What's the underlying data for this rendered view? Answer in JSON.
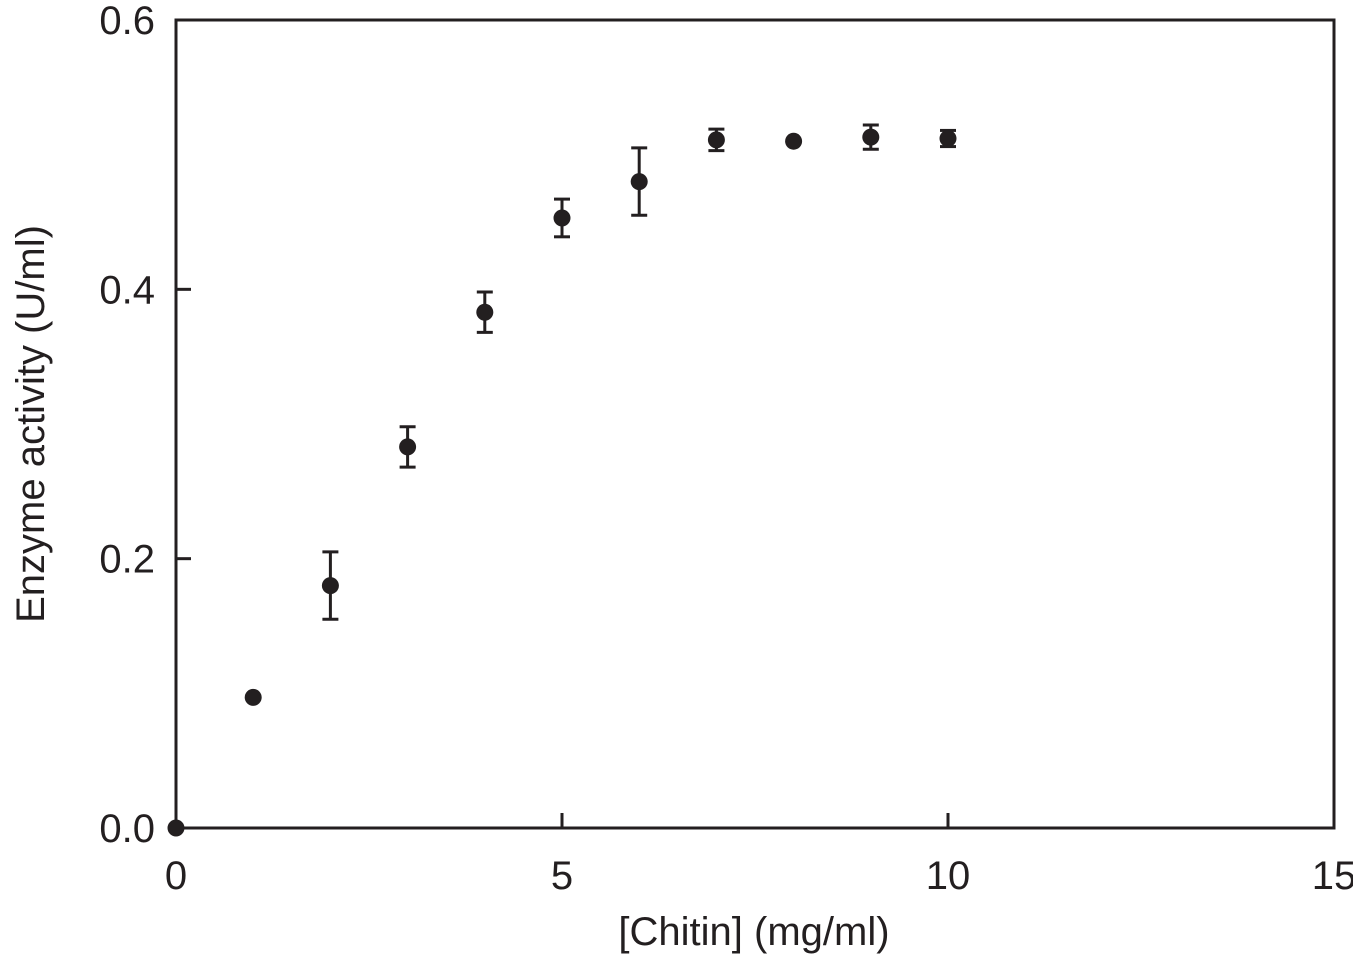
{
  "chart_data": {
    "type": "scatter",
    "title": "",
    "xlabel": "[Chitin] (mg/ml)",
    "ylabel": "Enzyme activity (U/ml)",
    "xlim": [
      0,
      15
    ],
    "ylim": [
      0,
      0.6
    ],
    "xticks": [
      0,
      5,
      10,
      15
    ],
    "xtick_labels": [
      "0",
      "5",
      "10",
      "15"
    ],
    "yticks": [
      0,
      0.2,
      0.4,
      0.6
    ],
    "ytick_labels": [
      "0.0",
      "0.2",
      "0.4",
      "0.6"
    ],
    "grid": false,
    "legend": "none",
    "marker_color": "#231f20",
    "series": [
      {
        "x": [
          0,
          1,
          2,
          3,
          4,
          5,
          6,
          7,
          8,
          9,
          10
        ],
        "y": [
          0.0,
          0.097,
          0.18,
          0.283,
          0.383,
          0.453,
          0.48,
          0.511,
          0.51,
          0.513,
          0.512
        ],
        "error": [
          0,
          0,
          0.025,
          0.015,
          0.015,
          0.014,
          0.025,
          0.008,
          0,
          0.009,
          0.006
        ]
      }
    ]
  }
}
